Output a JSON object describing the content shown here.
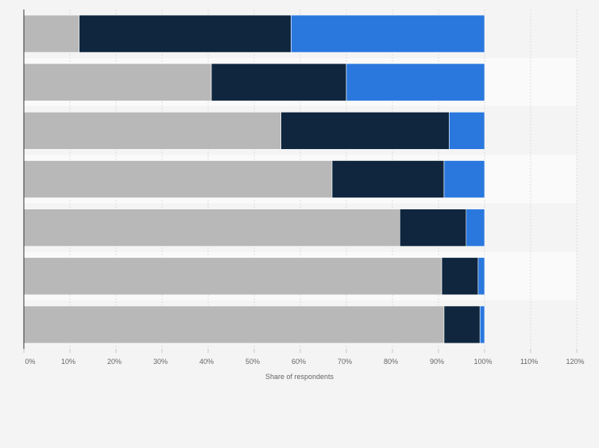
{
  "chart_data": {
    "type": "bar",
    "orientation": "horizontal",
    "stacked": true,
    "categories": [
      "",
      "",
      "",
      "",
      "",
      "",
      ""
    ],
    "series": [
      {
        "color": "#b8b8b8",
        "values": [
          12,
          40.7,
          55.8,
          66.9,
          81.6,
          90.7,
          91.2
        ]
      },
      {
        "color": "#0f263e",
        "values": [
          46,
          29.3,
          36.5,
          24.3,
          14.4,
          7.9,
          7.8
        ]
      },
      {
        "color": "#2a78de",
        "values": [
          42,
          30,
          7.7,
          8.8,
          4,
          1.4,
          1
        ]
      }
    ],
    "xlabel": "Share of respondents",
    "xlim": [
      0,
      120
    ],
    "xticks": [
      "0%",
      "10%",
      "20%",
      "30%",
      "40%",
      "50%",
      "60%",
      "70%",
      "80%",
      "90%",
      "100%",
      "110%",
      "120%"
    ],
    "grid": true,
    "legend": "none"
  }
}
